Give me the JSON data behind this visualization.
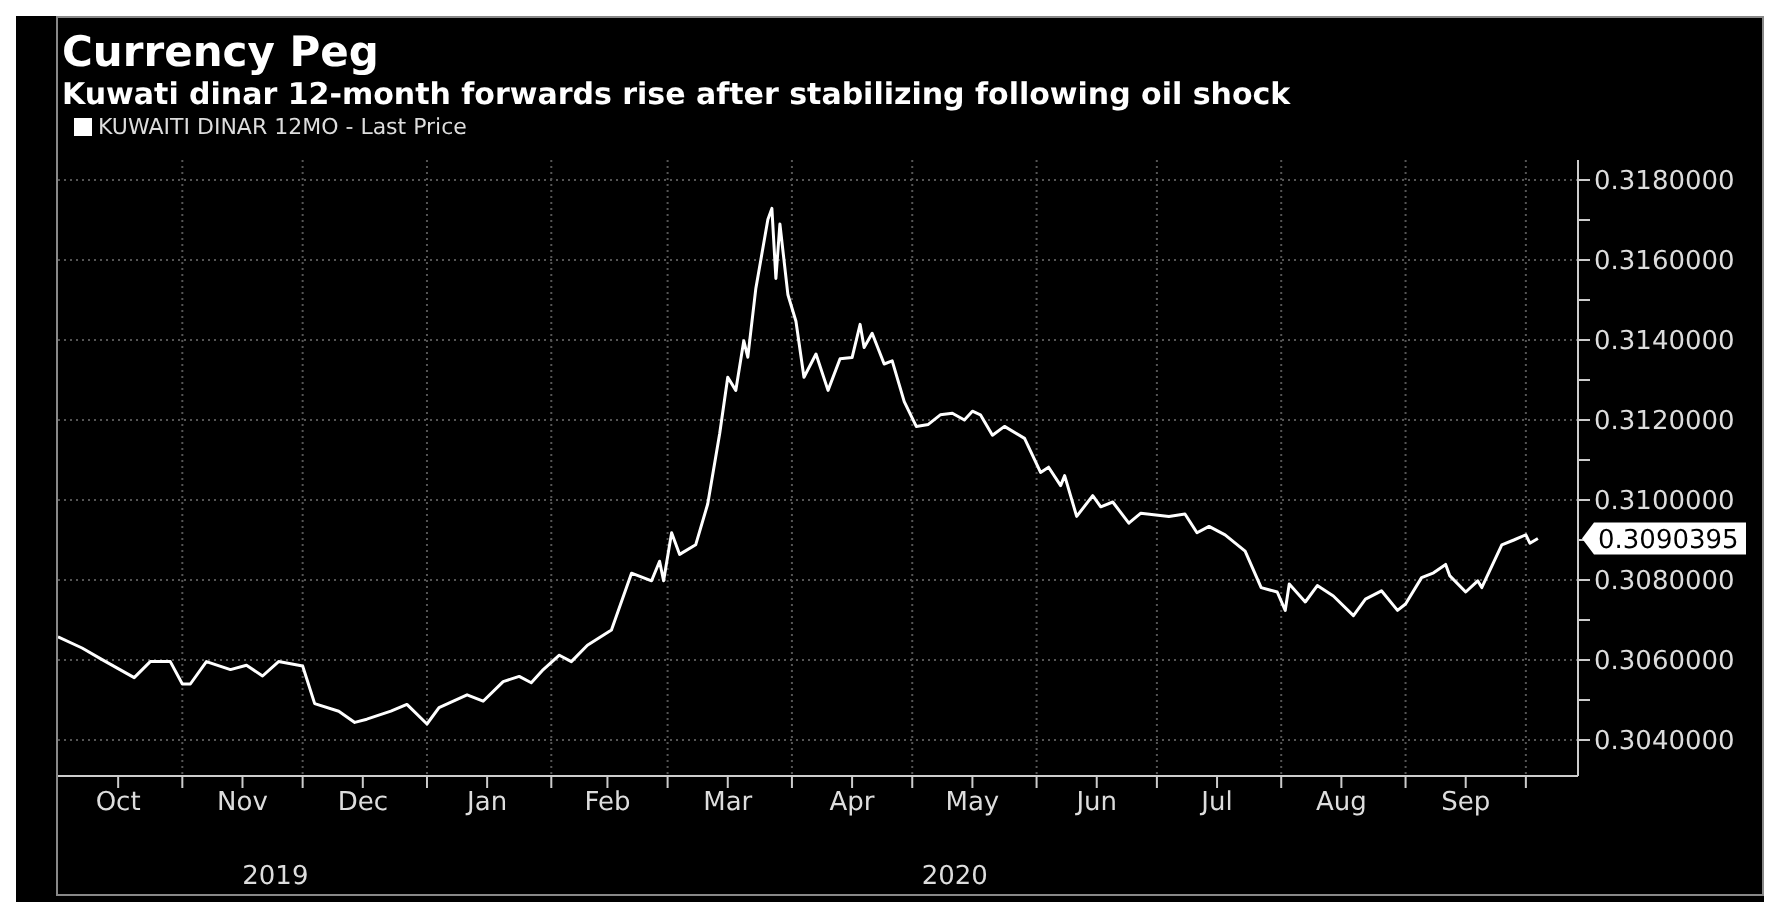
{
  "chart_data": {
    "type": "line",
    "title": "Currency Peg",
    "subtitle": "Kuwati dinar 12-month forwards rise after stabilizing following oil shock",
    "x": [
      "2019-10-01",
      "2019-10-07",
      "2019-10-12",
      "2019-10-20",
      "2019-10-24",
      "2019-10-29",
      "2019-11-01",
      "2019-11-03",
      "2019-11-07",
      "2019-11-13",
      "2019-11-17",
      "2019-11-21",
      "2019-11-25",
      "2019-12-01",
      "2019-12-04",
      "2019-12-10",
      "2019-12-14",
      "2019-12-17",
      "2019-12-23",
      "2019-12-27",
      "2020-01-01",
      "2020-01-04",
      "2020-01-11",
      "2020-01-15",
      "2020-01-20",
      "2020-01-24",
      "2020-01-27",
      "2020-01-30",
      "2020-02-03",
      "2020-02-06",
      "2020-02-10",
      "2020-02-16",
      "2020-02-21",
      "2020-02-26",
      "2020-02-28",
      "2020-02-29",
      "2020-03-02",
      "2020-03-04",
      "2020-03-08",
      "2020-03-11",
      "2020-03-14",
      "2020-03-16",
      "2020-03-18",
      "2020-03-20",
      "2020-03-21",
      "2020-03-23",
      "2020-03-26",
      "2020-03-27",
      "2020-03-28",
      "2020-03-29",
      "2020-03-31",
      "2020-04-02",
      "2020-04-04",
      "2020-04-07",
      "2020-04-10",
      "2020-04-13",
      "2020-04-16",
      "2020-04-18",
      "2020-04-19",
      "2020-04-21",
      "2020-04-24",
      "2020-04-26",
      "2020-04-29",
      "2020-05-02",
      "2020-05-05",
      "2020-05-08",
      "2020-05-11",
      "2020-05-14",
      "2020-05-16",
      "2020-05-18",
      "2020-05-21",
      "2020-05-24",
      "2020-05-29",
      "2020-06-02",
      "2020-06-04",
      "2020-06-07",
      "2020-06-08",
      "2020-06-11",
      "2020-06-15",
      "2020-06-17",
      "2020-06-20",
      "2020-06-24",
      "2020-06-27",
      "2020-07-04",
      "2020-07-08",
      "2020-07-11",
      "2020-07-14",
      "2020-07-18",
      "2020-07-23",
      "2020-07-27",
      "2020-07-31",
      "2020-08-02",
      "2020-08-03",
      "2020-08-07",
      "2020-08-10",
      "2020-08-14",
      "2020-08-19",
      "2020-08-22",
      "2020-08-26",
      "2020-08-30",
      "2020-09-01",
      "2020-09-05",
      "2020-09-08",
      "2020-09-11",
      "2020-09-12",
      "2020-09-16",
      "2020-09-19",
      "2020-09-20",
      "2020-09-25",
      "2020-09-28",
      "2020-10-01",
      "2020-10-02",
      "2020-10-04"
    ],
    "series": [
      {
        "name": "KUWAITI DINAR 12MO - Last Price",
        "color": "#ffffff",
        "values": [
          0.30658,
          0.3063,
          0.30601,
          0.30556,
          0.30596,
          0.30596,
          0.3054,
          0.3054,
          0.30596,
          0.30576,
          0.30587,
          0.3056,
          0.30596,
          0.30585,
          0.30491,
          0.30472,
          0.30444,
          0.30452,
          0.30472,
          0.30489,
          0.3044,
          0.30481,
          0.30513,
          0.30497,
          0.30546,
          0.30559,
          0.30543,
          0.30576,
          0.30612,
          0.30596,
          0.30637,
          0.30675,
          0.30817,
          0.30798,
          0.30847,
          0.30798,
          0.30918,
          0.30864,
          0.30888,
          0.3099,
          0.31167,
          0.31307,
          0.31274,
          0.31398,
          0.31357,
          0.31529,
          0.31701,
          0.31729,
          0.31554,
          0.3169,
          0.31513,
          0.31447,
          0.31307,
          0.31365,
          0.31274,
          0.31353,
          0.31356,
          0.31439,
          0.31381,
          0.31417,
          0.3134,
          0.31348,
          0.31246,
          0.31184,
          0.31189,
          0.31213,
          0.31217,
          0.312,
          0.31222,
          0.31213,
          0.31162,
          0.31184,
          0.31154,
          0.31069,
          0.31082,
          0.31036,
          0.31061,
          0.30959,
          0.31011,
          0.30983,
          0.30995,
          0.30942,
          0.30967,
          0.30959,
          0.30965,
          0.30918,
          0.30934,
          0.30913,
          0.30872,
          0.30781,
          0.3077,
          0.30724,
          0.3079,
          0.30745,
          0.30786,
          0.3076,
          0.30711,
          0.30752,
          0.30773,
          0.30724,
          0.3074,
          0.30806,
          0.30818,
          0.30839,
          0.30811,
          0.3077,
          0.30798,
          0.30781,
          0.30888,
          0.309,
          0.30913,
          0.30892,
          0.3090395
        ]
      }
    ],
    "xlim": [
      "2019-10-01",
      "2020-10-14"
    ],
    "xticks": [
      {
        "value": "2019-10-16",
        "label": "Oct"
      },
      {
        "value": "2019-11-01",
        "label": null
      },
      {
        "value": "2019-11-16",
        "label": "Nov"
      },
      {
        "value": "2019-12-01",
        "label": null
      },
      {
        "value": "2019-12-16",
        "label": "Dec"
      },
      {
        "value": "2020-01-01",
        "label": null
      },
      {
        "value": "2020-01-16",
        "label": "Jan"
      },
      {
        "value": "2020-02-01",
        "label": null
      },
      {
        "value": "2020-02-15",
        "label": "Feb"
      },
      {
        "value": "2020-03-01",
        "label": null
      },
      {
        "value": "2020-03-16",
        "label": "Mar"
      },
      {
        "value": "2020-04-01",
        "label": null
      },
      {
        "value": "2020-04-16",
        "label": "Apr"
      },
      {
        "value": "2020-05-01",
        "label": null
      },
      {
        "value": "2020-05-16",
        "label": "May"
      },
      {
        "value": "2020-06-01",
        "label": null
      },
      {
        "value": "2020-06-16",
        "label": "Jun"
      },
      {
        "value": "2020-07-01",
        "label": null
      },
      {
        "value": "2020-07-16",
        "label": "Jul"
      },
      {
        "value": "2020-08-01",
        "label": null
      },
      {
        "value": "2020-08-16",
        "label": "Aug"
      },
      {
        "value": "2020-09-01",
        "label": null
      },
      {
        "value": "2020-09-16",
        "label": "Sep"
      },
      {
        "value": "2020-10-01",
        "label": null
      }
    ],
    "ylim": [
      0.3031,
      0.3185
    ],
    "yticks": [
      {
        "value": 0.304,
        "label": "0.3040000"
      },
      {
        "value": 0.305,
        "label": null
      },
      {
        "value": 0.306,
        "label": "0.3060000"
      },
      {
        "value": 0.307,
        "label": null
      },
      {
        "value": 0.308,
        "label": "0.3080000"
      },
      {
        "value": 0.309,
        "label": null
      },
      {
        "value": 0.31,
        "label": "0.3100000"
      },
      {
        "value": 0.311,
        "label": null
      },
      {
        "value": 0.312,
        "label": "0.3120000"
      },
      {
        "value": 0.313,
        "label": null
      },
      {
        "value": 0.314,
        "label": "0.3140000"
      },
      {
        "value": 0.315,
        "label": null
      },
      {
        "value": 0.316,
        "label": "0.3160000"
      },
      {
        "value": 0.317,
        "label": null
      },
      {
        "value": 0.318,
        "label": "0.3180000"
      }
    ],
    "annotations": [
      "2019",
      "2020",
      {
        "text": "0.3090395",
        "x": "2020-10-04",
        "y": 0.3090395
      }
    ],
    "grid": true,
    "legend": "top left",
    "line_style": "solid",
    "marker": "none"
  }
}
